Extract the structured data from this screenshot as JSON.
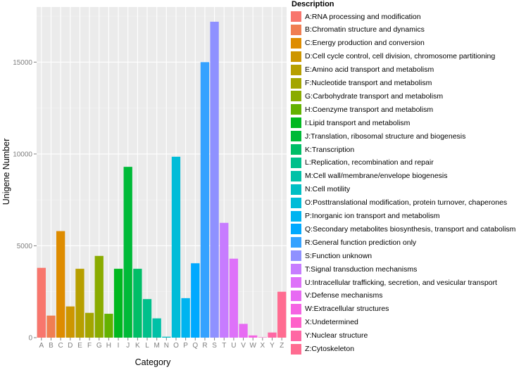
{
  "chart_data": {
    "type": "bar",
    "xlabel": "Category",
    "ylabel": "Unigene Number",
    "ylim": [
      0,
      18000
    ],
    "y_ticks": [
      0,
      5000,
      10000,
      15000
    ],
    "categories": [
      "A",
      "B",
      "C",
      "D",
      "E",
      "F",
      "G",
      "H",
      "I",
      "J",
      "K",
      "L",
      "M",
      "N",
      "O",
      "P",
      "Q",
      "R",
      "S",
      "T",
      "U",
      "V",
      "W",
      "X",
      "Y",
      "Z"
    ],
    "values": [
      3800,
      1200,
      5800,
      1700,
      3750,
      1350,
      4450,
      1300,
      3750,
      9300,
      3750,
      2100,
      1050,
      50,
      9850,
      2150,
      4050,
      15000,
      17200,
      6250,
      4300,
      750,
      120,
      20,
      280,
      2500
    ],
    "colors": [
      "#F8766D",
      "#F07E52",
      "#DE8C00",
      "#CD9600",
      "#B79F00",
      "#A3A500",
      "#8AAB00",
      "#64B200",
      "#00B81F",
      "#00BA38",
      "#00BE67",
      "#00C08B",
      "#00C1A7",
      "#00BFC4",
      "#00BCD8",
      "#00B4F0",
      "#00A9FF",
      "#35A2FF",
      "#8F91FF",
      "#C77CFF",
      "#DE71F9",
      "#E76BF3",
      "#F564E3",
      "#FF61C9",
      "#FF67A4",
      "#FF6C91"
    ],
    "legend_title": "Description",
    "legend_position": "right",
    "grid": true,
    "descriptions": [
      "A:RNA processing and modification",
      "B:Chromatin structure and dynamics",
      "C:Energy production and conversion",
      "D:Cell cycle control, cell division, chromosome partitioning",
      "E:Amino acid transport and metabolism",
      "F:Nucleotide transport and metabolism",
      "G:Carbohydrate transport and metabolism",
      "H:Coenzyme transport and metabolism",
      "I:Lipid transport and metabolism",
      "J:Translation, ribosomal structure and biogenesis",
      "K:Transcription",
      "L:Replication, recombination and repair",
      "M:Cell wall/membrane/envelope biogenesis",
      "N:Cell motility",
      "O:Posttranslational modification, protein turnover, chaperones",
      "P:Inorganic ion transport and metabolism",
      "Q:Secondary metabolites biosynthesis, transport and catabolism",
      "R:General function prediction only",
      "S:Function unknown",
      "T:Signal transduction mechanisms",
      "U:Intracellular trafficking, secretion, and vesicular transport",
      "V:Defense mechanisms",
      "W:Extracellular structures",
      "X:Undetermined",
      "Y:Nuclear structure",
      "Z:Cytoskeleton"
    ]
  }
}
